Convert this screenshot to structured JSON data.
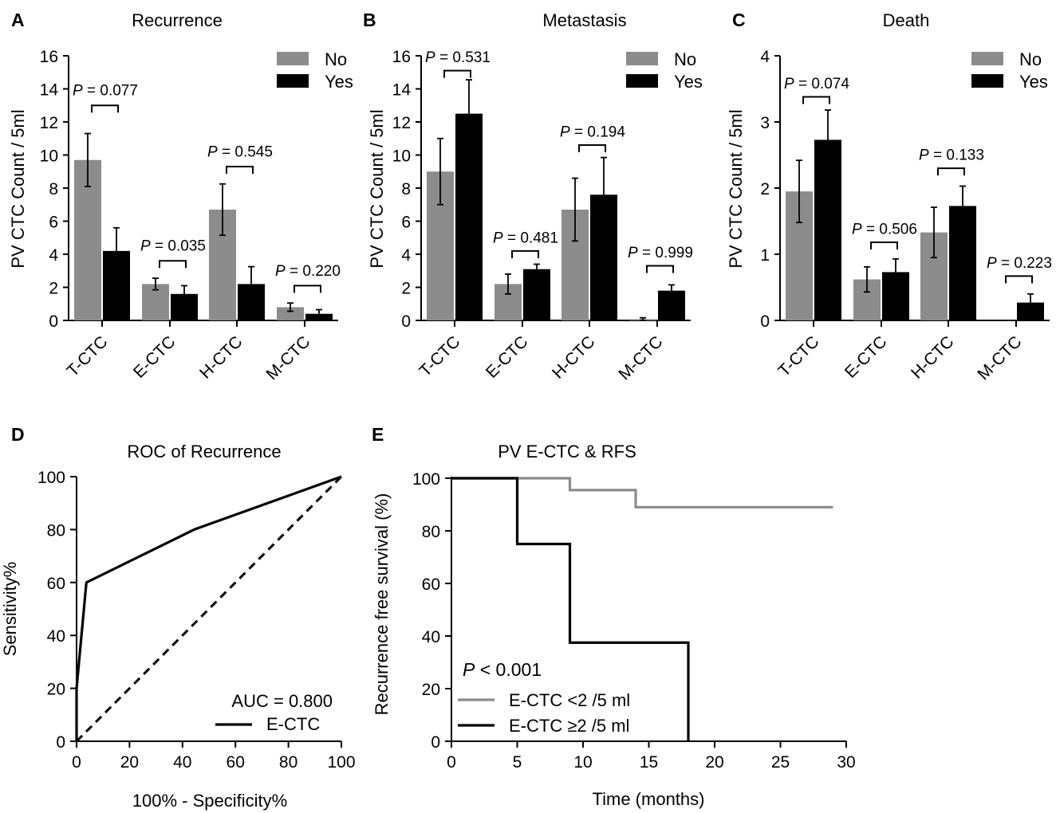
{
  "colors": {
    "no": "#8c8c8c",
    "yes": "#000000",
    "line_gray": "#8c8c8c",
    "line_black": "#000000"
  },
  "chart_data": [
    {
      "panel": "A",
      "type": "bar",
      "title": "Recurrence",
      "ylabel": "PV CTC Count / 5ml",
      "ylim": [
        0,
        16
      ],
      "yticks": [
        0,
        2,
        4,
        6,
        8,
        10,
        12,
        14,
        16
      ],
      "categories": [
        "T-CTC",
        "E-CTC",
        "H-CTC",
        "M-CTC"
      ],
      "legend": [
        "No",
        "Yes"
      ],
      "series": [
        {
          "name": "No",
          "values": [
            9.7,
            2.2,
            6.7,
            0.8
          ],
          "errors": [
            1.6,
            0.35,
            1.55,
            0.25
          ]
        },
        {
          "name": "Yes",
          "values": [
            4.2,
            1.6,
            2.2,
            0.4
          ],
          "errors": [
            1.4,
            0.5,
            1.05,
            0.25
          ]
        }
      ],
      "pvalues": [
        {
          "label": "P",
          "text": " = 0.077"
        },
        {
          "label": "P",
          "text": " = 0.035"
        },
        {
          "label": "P",
          "text": " = 0.545"
        },
        {
          "label": "P",
          "text": " = 0.220"
        }
      ],
      "bracket_at": [
        13.0,
        3.6,
        9.3,
        2.1
      ],
      "ptext_at": [
        13.9,
        4.5,
        10.2,
        3.0
      ]
    },
    {
      "panel": "B",
      "type": "bar",
      "title": "Metastasis",
      "ylabel": "PV CTC Count / 5ml",
      "ylim": [
        0,
        16
      ],
      "yticks": [
        0,
        2,
        4,
        6,
        8,
        10,
        12,
        14,
        16
      ],
      "categories": [
        "T-CTC",
        "E-CTC",
        "H-CTC",
        "M-CTC"
      ],
      "legend": [
        "No",
        "Yes"
      ],
      "series": [
        {
          "name": "No",
          "values": [
            9.0,
            2.2,
            6.7,
            0.08
          ],
          "errors": [
            2.0,
            0.6,
            1.9,
            0.08
          ]
        },
        {
          "name": "Yes",
          "values": [
            12.5,
            3.1,
            7.6,
            1.8
          ],
          "errors": [
            2.05,
            0.3,
            2.25,
            0.35
          ]
        }
      ],
      "pvalues": [
        {
          "label": "P",
          "text": " = 0.531"
        },
        {
          "label": "P",
          "text": " = 0.481"
        },
        {
          "label": "P",
          "text": " = 0.194"
        },
        {
          "label": "P",
          "text": " = 0.999"
        }
      ],
      "bracket_at": [
        15.1,
        4.2,
        10.6,
        3.3
      ],
      "ptext_at": [
        15.9,
        5.0,
        11.4,
        4.1
      ]
    },
    {
      "panel": "C",
      "type": "bar",
      "title": "Death",
      "ylabel": "PV CTC Count / 5ml",
      "ylim": [
        0,
        4
      ],
      "yticks": [
        0,
        1,
        2,
        3,
        4
      ],
      "categories": [
        "T-CTC",
        "E-CTC",
        "H-CTC",
        "M-CTC"
      ],
      "legend": [
        "No",
        "Yes"
      ],
      "series": [
        {
          "name": "No",
          "values": [
            1.95,
            0.62,
            1.33,
            0.0
          ],
          "errors": [
            0.47,
            0.19,
            0.38,
            0.0
          ]
        },
        {
          "name": "Yes",
          "values": [
            2.73,
            0.73,
            1.73,
            0.27
          ],
          "errors": [
            0.45,
            0.2,
            0.3,
            0.13
          ]
        }
      ],
      "pvalues": [
        {
          "label": "P",
          "text": " = 0.074"
        },
        {
          "label": "P",
          "text": " = 0.506"
        },
        {
          "label": "P",
          "text": " = 0.133"
        },
        {
          "label": "P",
          "text": " = 0.223"
        }
      ],
      "bracket_at": [
        3.38,
        1.18,
        2.3,
        0.67
      ],
      "ptext_at": [
        3.58,
        1.38,
        2.5,
        0.87
      ]
    },
    {
      "panel": "D",
      "type": "line",
      "title": "ROC of  Recurrence",
      "xlabel": "100% - Specificity%",
      "ylabel": "Sensitivity%",
      "xlim": [
        0,
        100
      ],
      "ylim": [
        0,
        100
      ],
      "xticks": [
        0,
        20,
        40,
        60,
        80,
        100
      ],
      "yticks": [
        0,
        20,
        40,
        60,
        80,
        100
      ],
      "series": [
        {
          "name": "E-CTC",
          "x": [
            0,
            0,
            3.7,
            44.4,
            100
          ],
          "y": [
            0,
            20,
            60,
            80,
            100
          ]
        },
        {
          "name": "reference",
          "x": [
            0,
            100
          ],
          "y": [
            0,
            100
          ]
        }
      ],
      "annotation": "AUC = 0.800",
      "legend": [
        "E-CTC"
      ]
    },
    {
      "panel": "E",
      "type": "line",
      "title": "PV E-CTC & RFS",
      "xlabel": "Time (months)",
      "ylabel": "Recurrence free survival (%)",
      "xlim": [
        0,
        30
      ],
      "ylim": [
        0,
        100
      ],
      "xticks": [
        0,
        5,
        10,
        15,
        20,
        25,
        30
      ],
      "yticks": [
        0,
        20,
        40,
        60,
        80,
        100
      ],
      "series": [
        {
          "name": "E-CTC <2 /5 ml",
          "x": [
            0,
            9,
            9,
            14,
            14,
            29
          ],
          "y": [
            100,
            100,
            95.5,
            95.5,
            89,
            89
          ]
        },
        {
          "name": "E-CTC ≥2 /5 ml",
          "x": [
            0,
            5,
            5,
            9,
            9,
            18,
            18
          ],
          "y": [
            100,
            100,
            75,
            75,
            37.5,
            37.5,
            0
          ]
        }
      ],
      "annotation_p": "P",
      "annotation_text": " < 0.001",
      "legend": [
        "E-CTC <2 /5 ml",
        "E-CTC ≥2 /5 ml"
      ]
    }
  ]
}
